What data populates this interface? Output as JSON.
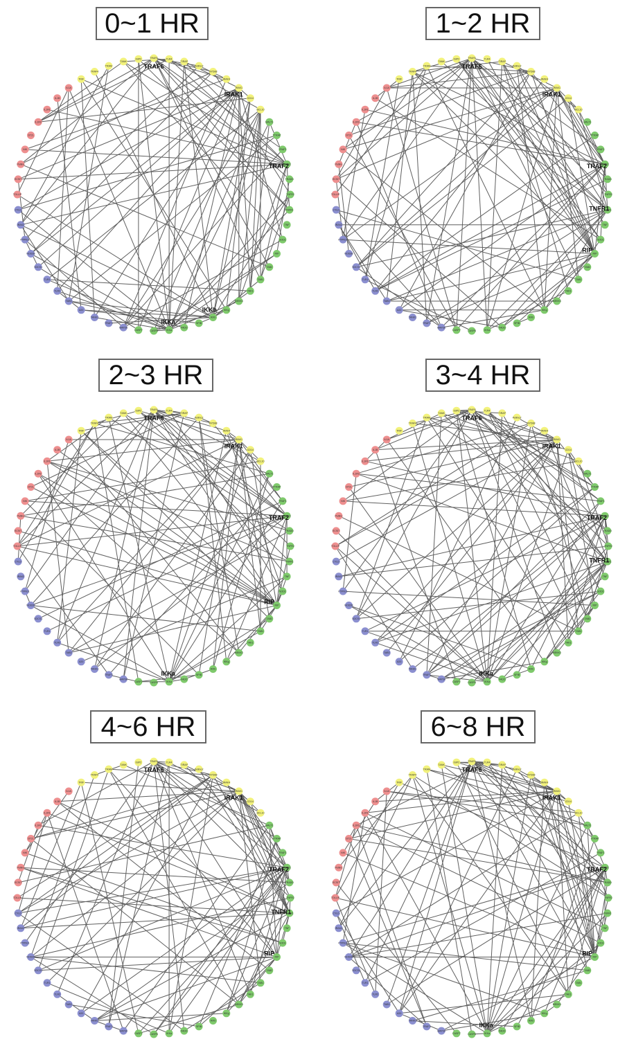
{
  "colors": {
    "yellow": "#f2f27c",
    "red": "#ee8f8f",
    "blue": "#8b8fd0",
    "green": "#7fca6c",
    "edge": "#5f5f5f",
    "frame": "#666666"
  },
  "panels": [
    {
      "title": "0~1 HR",
      "hubs": [
        "TRAF6",
        "IRAK1",
        "TRAF2",
        "IKKb",
        "IKKa"
      ],
      "seed": 11
    },
    {
      "title": "1~2 HR",
      "hubs": [
        "TRAF6",
        "IRAK1",
        "TRAF2",
        "TNFR1",
        "RIP"
      ],
      "seed": 23
    },
    {
      "title": "2~3 HR",
      "hubs": [
        "TRAF6",
        "IRAK1",
        "TRAF2",
        "RIP",
        "IKKa"
      ],
      "seed": 37
    },
    {
      "title": "3~4 HR",
      "hubs": [
        "TRAF6",
        "IRAK1",
        "TRAF2",
        "TNFR1",
        "IKKa"
      ],
      "seed": 41
    },
    {
      "title": "4~6 HR",
      "hubs": [
        "TRAF6",
        "IRAK1",
        "TRAF2",
        "TNFR1",
        "RIP"
      ],
      "seed": 53
    },
    {
      "title": "6~8 HR",
      "hubs": [
        "TRAF6",
        "IRAK1",
        "TRAF2",
        "RIP",
        "IKKa"
      ],
      "seed": 67
    }
  ],
  "nodes": [
    {
      "label": "TRAF6",
      "group": "yellow"
    },
    {
      "label": "TLR4",
      "group": "yellow"
    },
    {
      "label": "TIRAP",
      "group": "yellow"
    },
    {
      "label": "Pellino2",
      "group": "yellow"
    },
    {
      "label": "MYD88",
      "group": "yellow"
    },
    {
      "label": "IRAK4",
      "group": "yellow"
    },
    {
      "label": "IRAK1",
      "group": "yellow"
    },
    {
      "label": "CD14",
      "group": "yellow"
    },
    {
      "label": "BCL10",
      "group": "yellow"
    },
    {
      "label": "MALT1",
      "group": "green"
    },
    {
      "label": "TTRAP",
      "group": "green"
    },
    {
      "label": "TRAF1",
      "group": "green"
    },
    {
      "label": "TRAF2",
      "group": "green"
    },
    {
      "label": "TRADD",
      "group": "green"
    },
    {
      "label": "TNFR2",
      "group": "green"
    },
    {
      "label": "TNFR1",
      "group": "green"
    },
    {
      "label": "TNF",
      "group": "green"
    },
    {
      "label": "SOD1",
      "group": "green"
    },
    {
      "label": "RIP",
      "group": "green"
    },
    {
      "label": "TAB2",
      "group": "green"
    },
    {
      "label": "TAB1",
      "group": "green"
    },
    {
      "label": "TAK1",
      "group": "green"
    },
    {
      "label": "MEKK3",
      "group": "green"
    },
    {
      "label": "IKKg",
      "group": "green"
    },
    {
      "label": "IKKb",
      "group": "green"
    },
    {
      "label": "SPIB",
      "group": "green"
    },
    {
      "label": "FADD",
      "group": "green"
    },
    {
      "label": "IKKa",
      "group": "green"
    },
    {
      "label": "CASP8",
      "group": "green"
    },
    {
      "label": "CASP7",
      "group": "green"
    },
    {
      "label": "MAP3K",
      "group": "blue"
    },
    {
      "label": "TRAF3",
      "group": "blue"
    },
    {
      "label": "TANK1",
      "group": "blue"
    },
    {
      "label": "A20",
      "group": "blue"
    },
    {
      "label": "TAB3",
      "group": "blue"
    },
    {
      "label": "TLR2",
      "group": "blue"
    },
    {
      "label": "TLR1",
      "group": "blue"
    },
    {
      "label": "SOCS1",
      "group": "blue"
    },
    {
      "label": "NOD2B",
      "group": "blue"
    },
    {
      "label": "PTPN11",
      "group": "blue"
    },
    {
      "label": "IRAK2",
      "group": "blue"
    },
    {
      "label": "CYLD",
      "group": "blue"
    },
    {
      "label": "TOLLIP",
      "group": "red"
    },
    {
      "label": "ECSIT",
      "group": "red"
    },
    {
      "label": "Pellino",
      "group": "red"
    },
    {
      "label": "NIK",
      "group": "red"
    },
    {
      "label": "ST2L",
      "group": "red"
    },
    {
      "label": "IL1R2",
      "group": "red"
    },
    {
      "label": "IL1R1",
      "group": "red"
    },
    {
      "label": "IL1B",
      "group": "red"
    },
    {
      "label": "IL1A",
      "group": "red"
    },
    {
      "label": "TRIF",
      "group": "yellow"
    },
    {
      "label": "TRAF4",
      "group": "yellow"
    },
    {
      "label": "TRAM",
      "group": "yellow"
    },
    {
      "label": "TANK",
      "group": "yellow"
    },
    {
      "label": "ISIP2",
      "group": "yellow"
    }
  ]
}
